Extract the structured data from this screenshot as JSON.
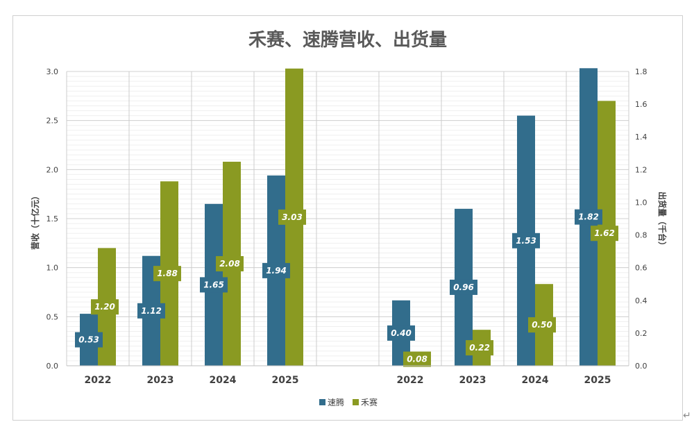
{
  "chart_data": {
    "type": "bar",
    "title": "禾赛、速腾营收、出货量",
    "colors": {
      "速腾": "#326d8c",
      "禾赛": "#8a9a22"
    },
    "legend": {
      "position": "bottom",
      "entries": [
        "速腾",
        "禾赛"
      ]
    },
    "grid": true,
    "panels": [
      {
        "name": "营收",
        "axis": "left",
        "ylabel": "营收（十亿元）",
        "ylim": [
          0,
          3.0
        ],
        "ticks": [
          "0.0",
          "0.5",
          "1.0",
          "1.5",
          "2.0",
          "2.5",
          "3.0"
        ],
        "categories": [
          "2022",
          "2023",
          "2024",
          "2025"
        ],
        "series": [
          {
            "name": "速腾",
            "values": [
              0.53,
              1.12,
              1.65,
              1.94
            ],
            "labels": [
              "0.53",
              "1.12",
              "1.65",
              "1.94"
            ]
          },
          {
            "name": "禾赛",
            "values": [
              1.2,
              1.88,
              2.08,
              3.03
            ],
            "labels": [
              "1.20",
              "1.88",
              "2.08",
              "3.03"
            ]
          }
        ]
      },
      {
        "name": "出货量",
        "axis": "right",
        "ylabel": "出货量（千台）",
        "ylim": [
          0,
          1.8
        ],
        "ticks": [
          "0.0",
          "0.2",
          "0.4",
          "0.6",
          "0.8",
          "1.0",
          "1.2",
          "1.4",
          "1.6",
          "1.8"
        ],
        "categories": [
          "2022",
          "2023",
          "2024",
          "2025"
        ],
        "series": [
          {
            "name": "速腾",
            "values": [
              0.4,
              0.96,
              1.53,
              1.82
            ],
            "labels": [
              "0.40",
              "0.96",
              "1.53",
              "1.82"
            ]
          },
          {
            "name": "禾赛",
            "values": [
              0.08,
              0.22,
              0.5,
              1.62
            ],
            "labels": [
              "0.08",
              "0.22",
              "0.50",
              "1.62"
            ]
          }
        ]
      }
    ]
  },
  "page": {
    "return_mark": "↵"
  }
}
